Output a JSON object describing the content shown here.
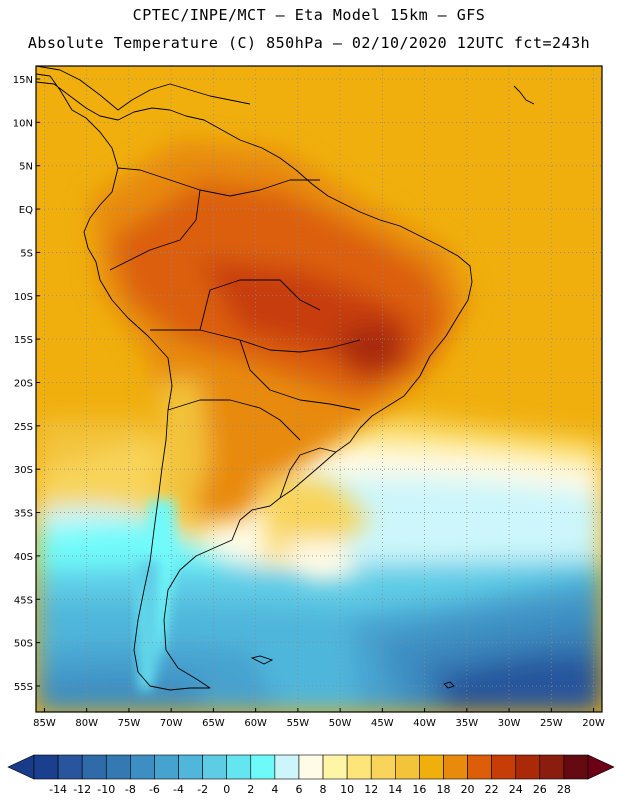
{
  "header": {
    "line1": "CPTEC/INPE/MCT –   Eta Model 15km – GFS",
    "line2": "Absolute Temperature (C) 850hPa – 02/10/2020 12UTC fct=243h"
  },
  "map": {
    "lat_labels": [
      "15N",
      "10N",
      "5N",
      "EQ",
      "5S",
      "10S",
      "15S",
      "20S",
      "25S",
      "30S",
      "35S",
      "40S",
      "45S",
      "50S",
      "55S"
    ],
    "lon_labels": [
      "85W",
      "80W",
      "75W",
      "70W",
      "65W",
      "60W",
      "55W",
      "50W",
      "45W",
      "40W",
      "35W",
      "30W",
      "25W",
      "20W"
    ],
    "lat_values": [
      15,
      10,
      5,
      0,
      -5,
      -10,
      -15,
      -20,
      -25,
      -30,
      -35,
      -40,
      -45,
      -50,
      -55
    ],
    "lon_values": [
      -85,
      -80,
      -75,
      -70,
      -65,
      -60,
      -55,
      -50,
      -45,
      -40,
      -35,
      -30,
      -25,
      -20
    ],
    "lat_range": [
      -58,
      16.5
    ],
    "lon_range": [
      -86,
      -19
    ]
  },
  "colorbar": {
    "labels": [
      "-14",
      "-12",
      "-10",
      "-8",
      "-6",
      "-4",
      "-2",
      "0",
      "2",
      "4",
      "6",
      "8",
      "10",
      "12",
      "14",
      "16",
      "18",
      "20",
      "22",
      "24",
      "26",
      "28"
    ],
    "colors": [
      "#1a3f8e",
      "#28559c",
      "#2f6aa9",
      "#3479b2",
      "#3d8ec2",
      "#46a2cf",
      "#50b6db",
      "#5fcce6",
      "#63e6f0",
      "#6ffafa",
      "#ccf6fb",
      "#fffbe6",
      "#fff5a6",
      "#fde57a",
      "#f8d45a",
      "#f3c33a",
      "#f0af0d",
      "#e88a0c",
      "#dc5e08",
      "#c73d08",
      "#a92908",
      "#8a1d0d",
      "#660a12"
    ],
    "left_arrow_color": "#1a3a8a",
    "right_arrow_color": "#6e0016"
  }
}
